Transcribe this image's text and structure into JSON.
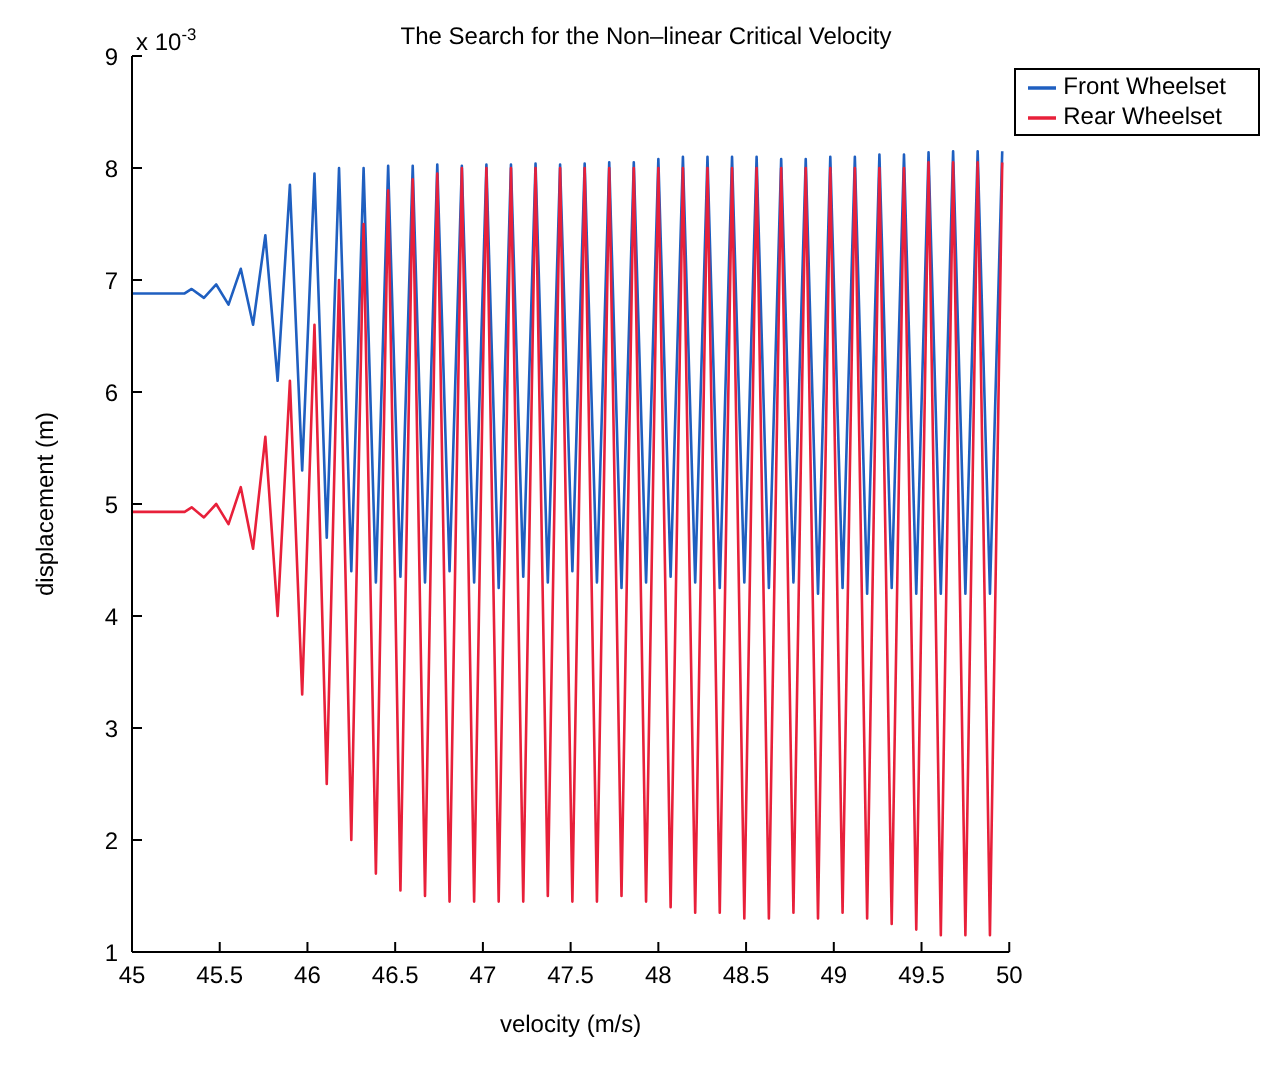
{
  "chart_data": {
    "type": "line",
    "title": "The Search for the Non–linear Critical Velocity",
    "xlabel": "velocity (m/s)",
    "ylabel": "displacement (m)",
    "annotations": [
      "x 10$^{-3}$"
    ],
    "x": [
      45,
      45.3,
      45.34,
      45.41,
      45.48,
      45.55,
      45.62,
      45.69,
      45.76,
      45.83,
      45.9,
      45.97,
      46.04,
      46.11,
      46.18,
      46.25,
      46.32,
      46.39,
      46.46,
      46.53,
      46.6,
      46.67,
      46.74,
      46.81,
      46.88,
      46.95,
      47.02,
      47.09,
      47.16,
      47.23,
      47.3,
      47.37,
      47.44,
      47.51,
      47.58,
      47.65,
      47.72,
      47.79,
      47.86,
      47.93,
      48,
      48.07,
      48.14,
      48.21,
      48.28,
      48.35,
      48.42,
      48.49,
      48.56,
      48.63,
      48.7,
      48.77,
      48.84,
      48.91,
      48.98,
      49.05,
      49.12,
      49.19,
      49.26,
      49.33,
      49.4,
      49.47,
      49.54,
      49.61,
      49.68,
      49.75,
      49.82,
      49.89,
      49.96
    ],
    "series": [
      {
        "name": "Front Wheelset",
        "color": "#1f5fc0",
        "values": [
          6.88,
          6.88,
          6.92,
          6.84,
          6.96,
          6.78,
          7.1,
          6.6,
          7.4,
          6.1,
          7.85,
          5.3,
          7.95,
          4.7,
          8.0,
          4.4,
          8.0,
          4.3,
          8.02,
          4.35,
          8.02,
          4.3,
          8.03,
          4.4,
          8.02,
          4.3,
          8.03,
          4.25,
          8.03,
          4.35,
          8.04,
          4.3,
          8.03,
          4.4,
          8.04,
          4.3,
          8.05,
          4.25,
          8.05,
          4.3,
          8.08,
          4.35,
          8.1,
          4.3,
          8.1,
          4.25,
          8.1,
          4.3,
          8.1,
          4.25,
          8.08,
          4.3,
          8.08,
          4.2,
          8.1,
          4.25,
          8.1,
          4.2,
          8.12,
          4.25,
          8.12,
          4.2,
          8.14,
          4.2,
          8.15,
          4.2,
          8.15,
          4.2,
          8.15
        ]
      },
      {
        "name": "Rear Wheelset",
        "color": "#e8203a",
        "values": [
          4.93,
          4.93,
          4.97,
          4.88,
          5.0,
          4.82,
          5.15,
          4.6,
          5.6,
          4.0,
          6.1,
          3.3,
          6.6,
          2.5,
          7.0,
          2.0,
          7.5,
          1.7,
          7.8,
          1.55,
          7.9,
          1.5,
          7.95,
          1.45,
          8.0,
          1.45,
          8.0,
          1.45,
          8.0,
          1.45,
          8.0,
          1.5,
          8.0,
          1.45,
          8.0,
          1.45,
          8.0,
          1.5,
          8.0,
          1.45,
          8.0,
          1.4,
          8.0,
          1.35,
          8.0,
          1.35,
          8.0,
          1.3,
          8.0,
          1.3,
          8.0,
          1.35,
          8.0,
          1.3,
          8.0,
          1.35,
          8.0,
          1.3,
          8.0,
          1.25,
          8.0,
          1.2,
          8.05,
          1.15,
          8.05,
          1.15,
          8.05,
          1.15,
          8.05
        ]
      }
    ],
    "xlim": [
      45,
      50
    ],
    "xticks": [
      45,
      45.5,
      46,
      46.5,
      47,
      47.5,
      48,
      48.5,
      49,
      49.5,
      50
    ],
    "ylim": [
      1,
      9
    ],
    "yticks": [
      1,
      2,
      3,
      4,
      5,
      6,
      7,
      8,
      9
    ],
    "grid": false,
    "legend": "top right",
    "marker": "none",
    "line_style": "solid"
  }
}
